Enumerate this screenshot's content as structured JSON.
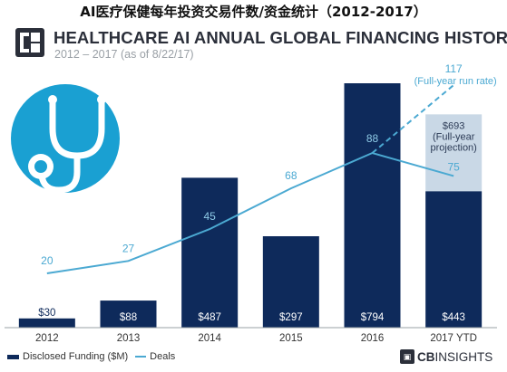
{
  "page_title": "AI医疗保健每年投资交易件数/资金统计（2012-2017）",
  "logo_icon": "cbinsights-logo-icon",
  "illustration_icon": "stethoscope-icon",
  "colors": {
    "bar": "#0e2a5b",
    "line": "#4ba9d2",
    "projection": "#c9d8e6",
    "label_light": "#8ecae6"
  },
  "chart_data": {
    "type": "bar",
    "title": "HEALTHCARE AI ANNUAL GLOBAL FINANCING HISTORY",
    "subtitle": "2012 – 2017 (as of 8/22/17)",
    "categories": [
      "2012",
      "2013",
      "2014",
      "2015",
      "2016",
      "2017 YTD"
    ],
    "series": [
      {
        "name": "Disclosed Funding ($M)",
        "type": "bar",
        "values": [
          30,
          88,
          487,
          297,
          794,
          443
        ],
        "labels": [
          "$30",
          "$88",
          "$487",
          "$297",
          "$794",
          "$443"
        ]
      },
      {
        "name": "Deals",
        "type": "line",
        "values": [
          20,
          27,
          45,
          68,
          88,
          75
        ],
        "labels": [
          "20",
          "27",
          "45",
          "68",
          "88",
          "75"
        ]
      }
    ],
    "projection": {
      "funding_value": 693,
      "funding_text": "$693 (Full-year projection)",
      "deals_value": 117,
      "deals_label": "117",
      "deals_note": "(Full-year run rate)"
    },
    "legend": [
      "Disclosed Funding ($M)",
      "Deals"
    ],
    "legend_position": "bottom-left",
    "grid": false
  },
  "footer_brand": {
    "prefix": "CB",
    "suffix": "INSIGHTS",
    "icon": "cbinsights-mini-logo-icon"
  }
}
